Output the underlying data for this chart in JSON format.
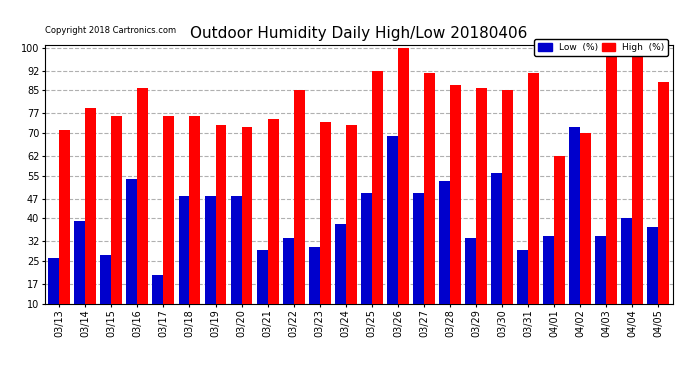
{
  "title": "Outdoor Humidity Daily High/Low 20180406",
  "copyright": "Copyright 2018 Cartronics.com",
  "categories": [
    "03/13",
    "03/14",
    "03/15",
    "03/16",
    "03/17",
    "03/18",
    "03/19",
    "03/20",
    "03/21",
    "03/22",
    "03/23",
    "03/24",
    "03/25",
    "03/26",
    "03/27",
    "03/28",
    "03/29",
    "03/30",
    "03/31",
    "04/01",
    "04/02",
    "04/03",
    "04/04",
    "04/05"
  ],
  "high_values": [
    71,
    79,
    76,
    86,
    76,
    76,
    73,
    72,
    75,
    85,
    74,
    73,
    92,
    100,
    91,
    87,
    86,
    85,
    91,
    62,
    70,
    101,
    99,
    88
  ],
  "low_values": [
    26,
    39,
    27,
    54,
    20,
    48,
    48,
    48,
    29,
    33,
    30,
    38,
    49,
    69,
    49,
    53,
    33,
    56,
    29,
    34,
    72,
    34,
    40,
    37
  ],
  "high_color": "#ff0000",
  "low_color": "#0000cc",
  "background_color": "#ffffff",
  "grid_color": "#b0b0b0",
  "ylim_min": 10,
  "ylim_max": 100,
  "yticks": [
    10,
    17,
    25,
    32,
    40,
    47,
    55,
    62,
    70,
    77,
    85,
    92,
    100
  ],
  "bar_width": 0.42,
  "title_fontsize": 11,
  "tick_fontsize": 7,
  "legend_low_label": "Low  (%)",
  "legend_high_label": "High  (%)"
}
